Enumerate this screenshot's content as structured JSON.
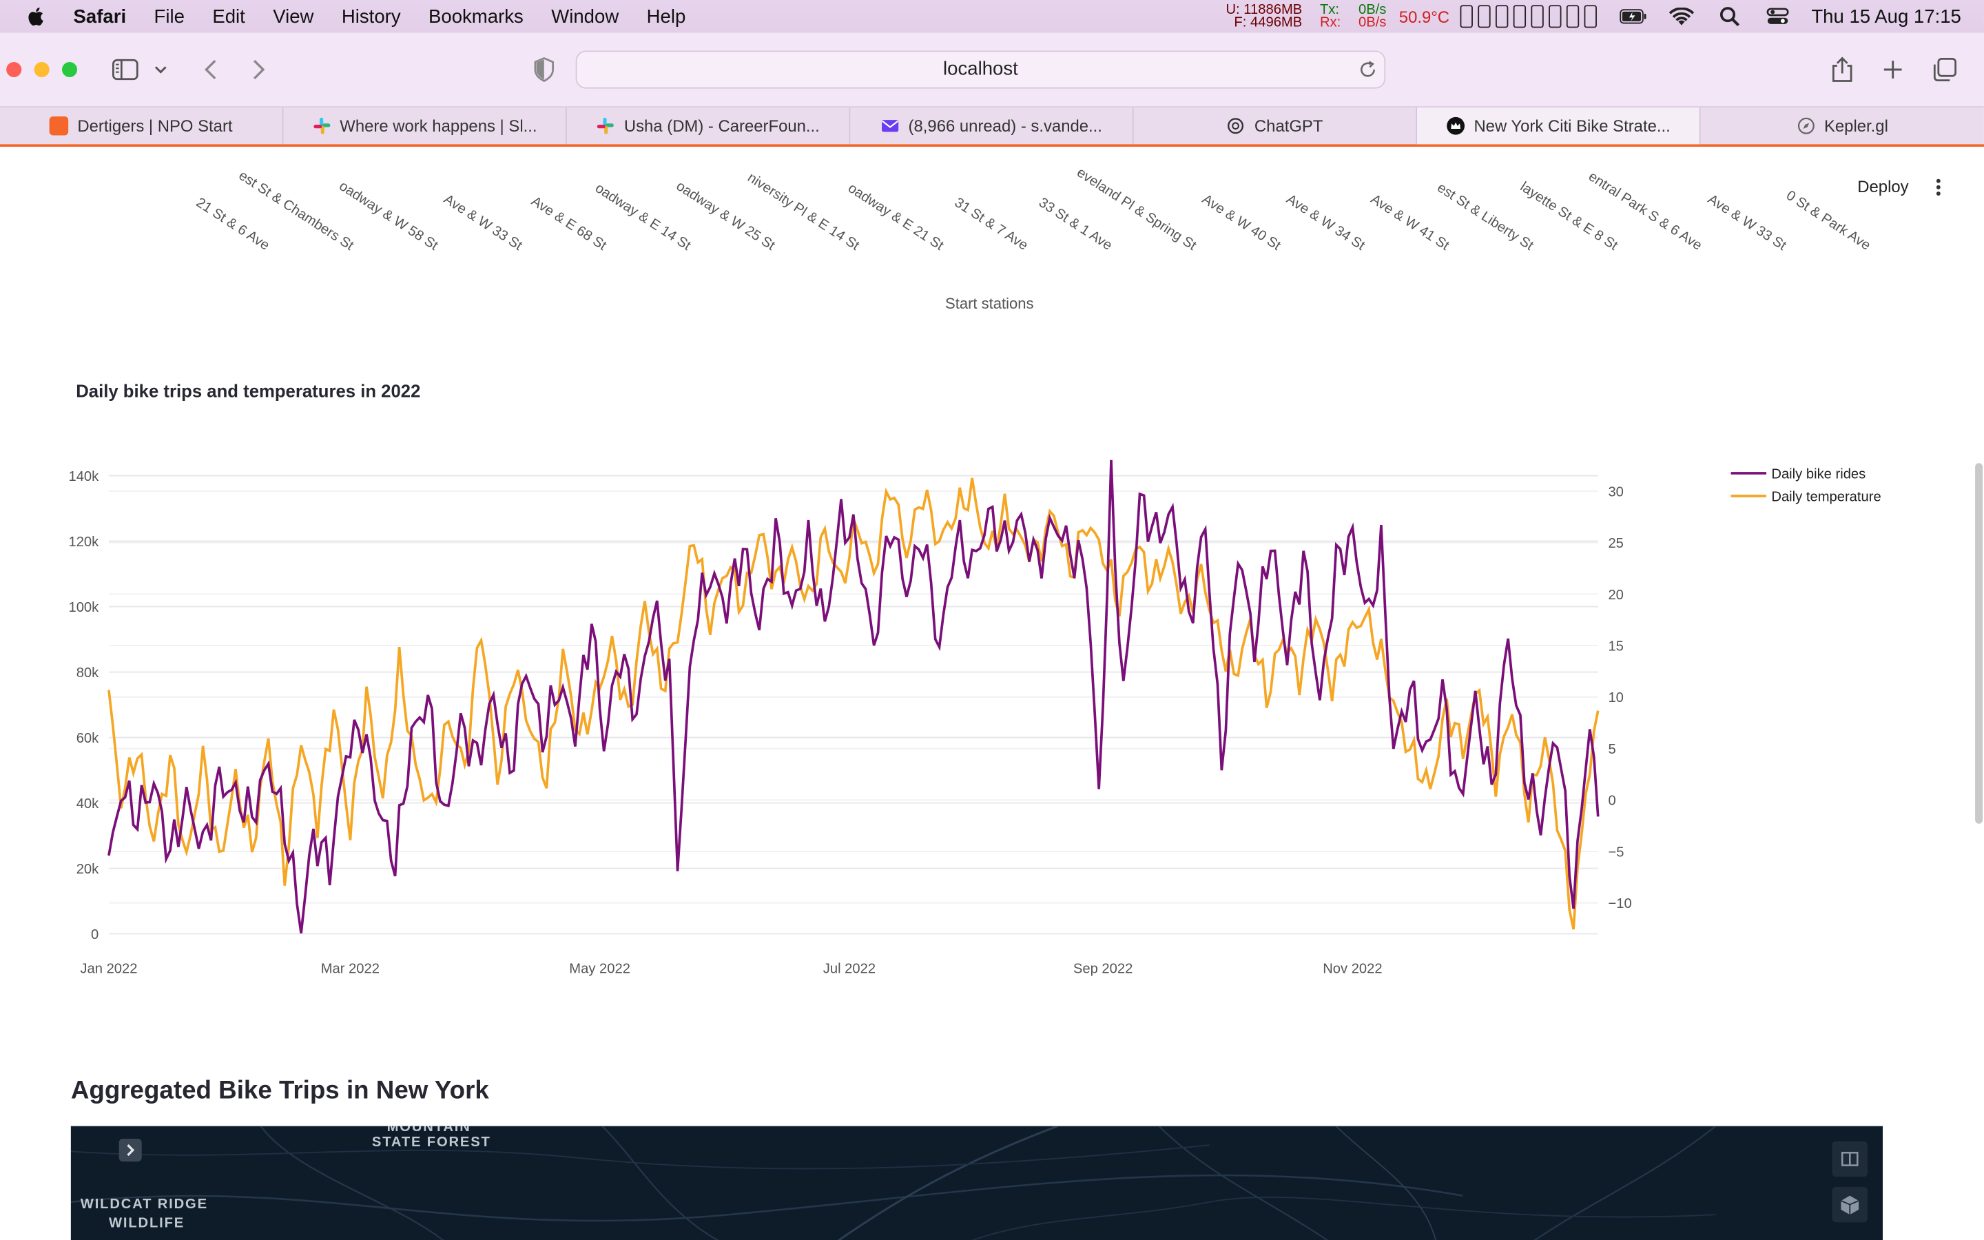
{
  "menubar": {
    "app": "Safari",
    "items": [
      "File",
      "Edit",
      "View",
      "History",
      "Bookmarks",
      "Window",
      "Help"
    ],
    "mem_used": "U:  11886MB",
    "mem_free": "F:    4496MB",
    "net_tx_label": "Tx:",
    "net_rx_label": "Rx:",
    "net_tx": "0B/s",
    "net_rx": "0B/s",
    "cpu_temp": "50.9°C",
    "datetime": "Thu 15 Aug  17:15"
  },
  "browser": {
    "address": "localhost",
    "tabs": [
      {
        "label": "Dertigers | NPO Start",
        "color": "#f5662b"
      },
      {
        "label": "Where work happens | Sl...",
        "color": "#e01e5a"
      },
      {
        "label": "Usha (DM) - CareerFoun...",
        "color": "#2eb67d"
      },
      {
        "label": "(8,966 unread) - s.vande...",
        "color": "#6a3df0"
      },
      {
        "label": "ChatGPT",
        "color": "#333333"
      },
      {
        "label": "New York Citi Bike Strate...",
        "color": "#111111"
      },
      {
        "label": "Kepler.gl",
        "color": "#666666"
      }
    ],
    "active_tab": 5
  },
  "app": {
    "deploy_label": "Deploy",
    "stations_axis_title": "Start stations",
    "station_labels": [
      "21 St & 6 Ave",
      "est St & Chambers St",
      "oadway & W 58 St",
      "Ave & W 33 St",
      "Ave & E 68 St",
      "oadway & E 14 St",
      "oadway & W 25 St",
      "niversity Pl & E 14 St",
      "oadway & E 21 St",
      "31 St & 7 Ave",
      "33 St & 1 Ave",
      "eveland Pl & Spring St",
      "Ave & W 40 St",
      "Ave & W 34 St",
      "Ave & W 41 St",
      "est St & Liberty St",
      "layette St & E 8 St",
      "entral Park S & 6 Ave",
      "Ave & W 33 St",
      "0 St & Park Ave"
    ],
    "chart_title": "Daily bike trips and temperatures in 2022",
    "section_title": "Aggregated Bike Trips in New York",
    "map_labels": [
      "MOUNTAIN",
      "STATE FOREST",
      "WILDCAT RIDGE",
      "WILDLIFE"
    ]
  },
  "chart_data": {
    "type": "line",
    "title": "Daily bike trips and temperatures in 2022",
    "legend_position": "top-right",
    "grid": true,
    "x_ticks": [
      "Jan 2022",
      "Mar 2022",
      "May 2022",
      "Jul 2022",
      "Sep 2022",
      "Nov 2022"
    ],
    "x_tick_dates": [
      "2022-01-01",
      "2022-03-01",
      "2022-05-01",
      "2022-07-01",
      "2022-09-01",
      "2022-11-01"
    ],
    "x_range": [
      "2022-01-01",
      "2022-12-31"
    ],
    "y_left": {
      "range": [
        0,
        140000
      ],
      "ticks": [
        0,
        20000,
        40000,
        60000,
        80000,
        100000,
        120000,
        140000
      ],
      "tick_labels": [
        "0",
        "20k",
        "40k",
        "60k",
        "80k",
        "100k",
        "120k",
        "140k"
      ]
    },
    "y_right": {
      "range": [
        -13,
        31.5
      ],
      "ticks": [
        -10,
        -5,
        0,
        5,
        10,
        15,
        20,
        25,
        30
      ],
      "tick_labels": [
        "−10",
        "−5",
        "0",
        "5",
        "10",
        "15",
        "20",
        "25",
        "30"
      ]
    },
    "series": [
      {
        "name": "Daily bike rides",
        "axis": "left",
        "color": "#7b0f7a",
        "anchors": [
          [
            "2022-01-01",
            21000
          ],
          [
            "2022-01-04",
            44000
          ],
          [
            "2022-01-08",
            36000
          ],
          [
            "2022-01-12",
            46000
          ],
          [
            "2022-01-16",
            24000
          ],
          [
            "2022-01-20",
            41000
          ],
          [
            "2022-01-24",
            26000
          ],
          [
            "2022-01-28",
            47000
          ],
          [
            "2022-02-01",
            42000
          ],
          [
            "2022-02-05",
            36000
          ],
          [
            "2022-02-09",
            52000
          ],
          [
            "2022-02-13",
            33000
          ],
          [
            "2022-02-17",
            3000
          ],
          [
            "2022-02-20",
            30000
          ],
          [
            "2022-02-24",
            21000
          ],
          [
            "2022-02-28",
            56000
          ],
          [
            "2022-03-04",
            63000
          ],
          [
            "2022-03-08",
            38000
          ],
          [
            "2022-03-12",
            22000
          ],
          [
            "2022-03-16",
            60000
          ],
          [
            "2022-03-20",
            72000
          ],
          [
            "2022-03-24",
            33000
          ],
          [
            "2022-03-28",
            64000
          ],
          [
            "2022-04-01",
            53000
          ],
          [
            "2022-04-05",
            72000
          ],
          [
            "2022-04-09",
            49000
          ],
          [
            "2022-04-13",
            82000
          ],
          [
            "2022-04-17",
            60000
          ],
          [
            "2022-04-21",
            76000
          ],
          [
            "2022-04-25",
            62000
          ],
          [
            "2022-04-29",
            96000
          ],
          [
            "2022-05-02",
            58000
          ],
          [
            "2022-05-06",
            86000
          ],
          [
            "2022-05-10",
            67000
          ],
          [
            "2022-05-14",
            100000
          ],
          [
            "2022-05-18",
            79000
          ],
          [
            "2022-05-20",
            22000
          ],
          [
            "2022-05-24",
            95000
          ],
          [
            "2022-05-28",
            110000
          ],
          [
            "2022-06-01",
            100000
          ],
          [
            "2022-06-05",
            118000
          ],
          [
            "2022-06-09",
            94000
          ],
          [
            "2022-06-13",
            122000
          ],
          [
            "2022-06-17",
            98000
          ],
          [
            "2022-06-21",
            119000
          ],
          [
            "2022-06-25",
            94000
          ],
          [
            "2022-06-29",
            128000
          ],
          [
            "2022-07-03",
            118000
          ],
          [
            "2022-07-07",
            88000
          ],
          [
            "2022-07-11",
            126000
          ],
          [
            "2022-07-15",
            105000
          ],
          [
            "2022-07-19",
            122000
          ],
          [
            "2022-07-23",
            87000
          ],
          [
            "2022-07-27",
            121000
          ],
          [
            "2022-07-31",
            112000
          ],
          [
            "2022-08-04",
            128000
          ],
          [
            "2022-08-08",
            119000
          ],
          [
            "2022-08-12",
            126000
          ],
          [
            "2022-08-16",
            113000
          ],
          [
            "2022-08-20",
            126000
          ],
          [
            "2022-08-24",
            117000
          ],
          [
            "2022-08-28",
            111000
          ],
          [
            "2022-08-31",
            42000
          ],
          [
            "2022-09-03",
            137000
          ],
          [
            "2022-09-06",
            72000
          ],
          [
            "2022-09-10",
            132000
          ],
          [
            "2022-09-14",
            122000
          ],
          [
            "2022-09-18",
            128000
          ],
          [
            "2022-09-22",
            95000
          ],
          [
            "2022-09-26",
            125000
          ],
          [
            "2022-09-30",
            52000
          ],
          [
            "2022-10-04",
            118000
          ],
          [
            "2022-10-08",
            88000
          ],
          [
            "2022-10-12",
            121000
          ],
          [
            "2022-10-16",
            85000
          ],
          [
            "2022-10-20",
            116000
          ],
          [
            "2022-10-24",
            70000
          ],
          [
            "2022-10-28",
            113000
          ],
          [
            "2022-11-01",
            121000
          ],
          [
            "2022-11-05",
            96000
          ],
          [
            "2022-11-08",
            118000
          ],
          [
            "2022-11-11",
            56000
          ],
          [
            "2022-11-15",
            75000
          ],
          [
            "2022-11-19",
            54000
          ],
          [
            "2022-11-23",
            74000
          ],
          [
            "2022-11-27",
            39000
          ],
          [
            "2022-12-01",
            71000
          ],
          [
            "2022-12-05",
            44000
          ],
          [
            "2022-12-09",
            91000
          ],
          [
            "2022-12-13",
            50000
          ],
          [
            "2022-12-17",
            34000
          ],
          [
            "2022-12-21",
            63000
          ],
          [
            "2022-12-25",
            10000
          ],
          [
            "2022-12-29",
            66000
          ],
          [
            "2022-12-31",
            33000
          ]
        ]
      },
      {
        "name": "Daily temperature",
        "axis": "right",
        "color": "#f5a623",
        "anchors": [
          [
            "2022-01-01",
            10
          ],
          [
            "2022-01-04",
            0
          ],
          [
            "2022-01-08",
            5
          ],
          [
            "2022-01-12",
            -4
          ],
          [
            "2022-01-16",
            4
          ],
          [
            "2022-01-20",
            -6
          ],
          [
            "2022-01-24",
            4
          ],
          [
            "2022-01-28",
            -6
          ],
          [
            "2022-02-01",
            2
          ],
          [
            "2022-02-05",
            -5
          ],
          [
            "2022-02-09",
            6
          ],
          [
            "2022-02-13",
            -7
          ],
          [
            "2022-02-17",
            6
          ],
          [
            "2022-02-21",
            -2
          ],
          [
            "2022-02-25",
            9
          ],
          [
            "2022-03-01",
            -3
          ],
          [
            "2022-03-05",
            10
          ],
          [
            "2022-03-09",
            0
          ],
          [
            "2022-03-13",
            13
          ],
          [
            "2022-03-17",
            3
          ],
          [
            "2022-03-21",
            -1
          ],
          [
            "2022-03-25",
            8
          ],
          [
            "2022-03-29",
            3
          ],
          [
            "2022-04-02",
            17
          ],
          [
            "2022-04-06",
            2
          ],
          [
            "2022-04-10",
            13
          ],
          [
            "2022-04-14",
            7
          ],
          [
            "2022-04-18",
            2
          ],
          [
            "2022-04-22",
            14
          ],
          [
            "2022-04-26",
            6
          ],
          [
            "2022-04-30",
            10
          ],
          [
            "2022-05-04",
            15
          ],
          [
            "2022-05-08",
            8
          ],
          [
            "2022-05-12",
            19
          ],
          [
            "2022-05-16",
            11
          ],
          [
            "2022-05-20",
            16
          ],
          [
            "2022-05-24",
            26
          ],
          [
            "2022-05-28",
            17
          ],
          [
            "2022-06-01",
            23
          ],
          [
            "2022-06-05",
            19
          ],
          [
            "2022-06-09",
            26
          ],
          [
            "2022-06-13",
            21
          ],
          [
            "2022-06-17",
            24
          ],
          [
            "2022-06-21",
            19
          ],
          [
            "2022-06-25",
            26
          ],
          [
            "2022-06-29",
            21
          ],
          [
            "2022-07-03",
            27
          ],
          [
            "2022-07-07",
            22
          ],
          [
            "2022-07-11",
            31
          ],
          [
            "2022-07-15",
            24
          ],
          [
            "2022-07-19",
            30
          ],
          [
            "2022-07-23",
            25
          ],
          [
            "2022-07-27",
            28
          ],
          [
            "2022-07-31",
            30
          ],
          [
            "2022-08-04",
            24
          ],
          [
            "2022-08-08",
            28
          ],
          [
            "2022-08-12",
            25
          ],
          [
            "2022-08-16",
            24
          ],
          [
            "2022-08-20",
            28
          ],
          [
            "2022-08-24",
            22
          ],
          [
            "2022-08-28",
            27
          ],
          [
            "2022-09-01",
            24
          ],
          [
            "2022-09-05",
            19
          ],
          [
            "2022-09-09",
            25
          ],
          [
            "2022-09-13",
            21
          ],
          [
            "2022-09-17",
            24
          ],
          [
            "2022-09-21",
            18
          ],
          [
            "2022-09-25",
            22
          ],
          [
            "2022-09-29",
            16
          ],
          [
            "2022-10-03",
            12
          ],
          [
            "2022-10-07",
            17
          ],
          [
            "2022-10-11",
            10
          ],
          [
            "2022-10-15",
            16
          ],
          [
            "2022-10-19",
            12
          ],
          [
            "2022-10-23",
            18
          ],
          [
            "2022-10-27",
            11
          ],
          [
            "2022-10-31",
            16
          ],
          [
            "2022-11-04",
            18
          ],
          [
            "2022-11-08",
            14
          ],
          [
            "2022-11-12",
            8
          ],
          [
            "2022-11-16",
            4
          ],
          [
            "2022-11-20",
            1
          ],
          [
            "2022-11-24",
            9
          ],
          [
            "2022-11-28",
            5
          ],
          [
            "2022-12-02",
            11
          ],
          [
            "2022-12-06",
            2
          ],
          [
            "2022-12-10",
            9
          ],
          [
            "2022-12-14",
            -1
          ],
          [
            "2022-12-18",
            6
          ],
          [
            "2022-12-22",
            -4
          ],
          [
            "2022-12-25",
            -12
          ],
          [
            "2022-12-28",
            1
          ],
          [
            "2022-12-31",
            8
          ]
        ]
      }
    ]
  }
}
